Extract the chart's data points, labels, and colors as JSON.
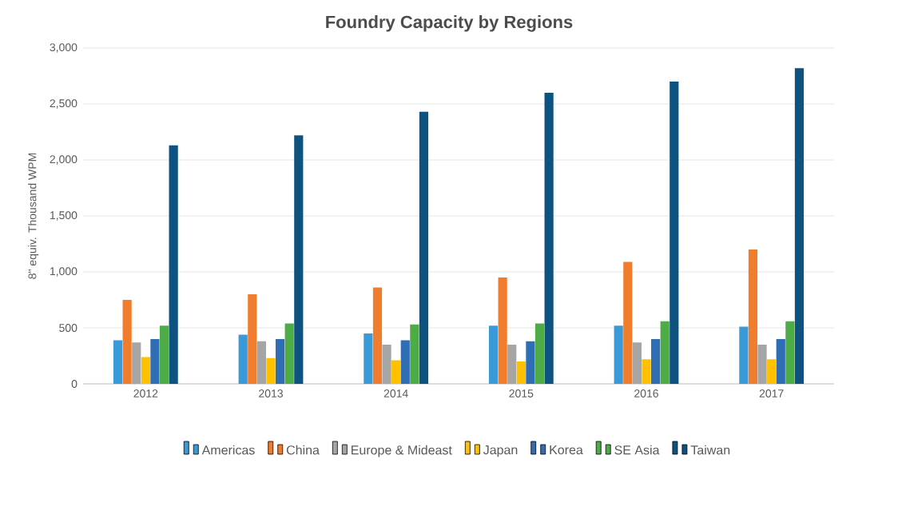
{
  "chart_data": {
    "type": "bar",
    "title": "Foundry Capacity by Regions",
    "ylabel": "8\" equiv. Thousand WPM",
    "categories": [
      "2012",
      "2013",
      "2014",
      "2015",
      "2016",
      "2017"
    ],
    "series": [
      {
        "name": "Americas",
        "color": "#3a9ad9",
        "values": [
          390,
          440,
          450,
          520,
          520,
          510
        ]
      },
      {
        "name": "China",
        "color": "#f07d2e",
        "values": [
          750,
          800,
          860,
          950,
          1090,
          1200
        ]
      },
      {
        "name": "Europe & Mideast",
        "color": "#a5a5a5",
        "values": [
          370,
          380,
          350,
          350,
          370,
          350
        ]
      },
      {
        "name": "Japan",
        "color": "#ffc000",
        "values": [
          240,
          230,
          210,
          200,
          220,
          220
        ]
      },
      {
        "name": "Korea",
        "color": "#2f6db5",
        "values": [
          400,
          400,
          390,
          380,
          400,
          400
        ]
      },
      {
        "name": "SE Asia",
        "color": "#4eac47",
        "values": [
          520,
          540,
          530,
          540,
          560,
          560
        ]
      },
      {
        "name": "Taiwan",
        "color": "#0e527f",
        "values": [
          2130,
          2220,
          2430,
          2600,
          2700,
          2820
        ]
      }
    ],
    "ylim": [
      0,
      3000
    ],
    "yticks": [
      {
        "value": 0,
        "label": "0"
      },
      {
        "value": 500,
        "label": "500"
      },
      {
        "value": 1000,
        "label": "1,000"
      },
      {
        "value": 1500,
        "label": "1,500"
      },
      {
        "value": 2000,
        "label": "2,000"
      },
      {
        "value": 2500,
        "label": "2,500"
      },
      {
        "value": 3000,
        "label": "3,000"
      }
    ],
    "grid": "y",
    "legend": "bottom"
  }
}
